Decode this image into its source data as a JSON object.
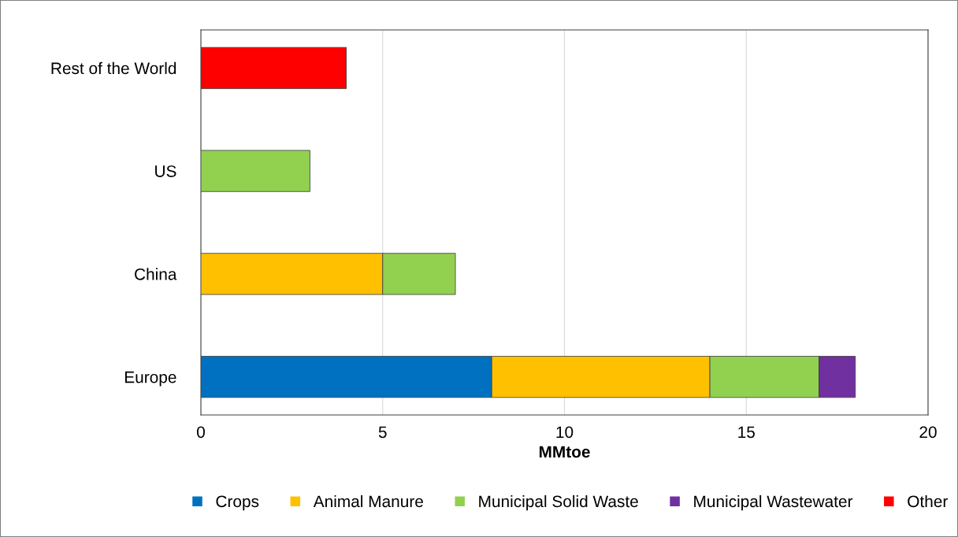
{
  "chart_data": {
    "type": "bar",
    "orientation": "horizontal",
    "stacked": true,
    "xlabel": "MMtoe",
    "categories": [
      "Rest of the World",
      "US",
      "China",
      "Europe"
    ],
    "series": [
      {
        "name": "Crops",
        "color": "#0070c0",
        "values": [
          null,
          null,
          null,
          8
        ]
      },
      {
        "name": "Animal Manure",
        "color": "#ffc000",
        "values": [
          null,
          null,
          5,
          6
        ]
      },
      {
        "name": "Municipal Solid Waste",
        "color": "#92d050",
        "values": [
          null,
          3,
          2,
          3
        ]
      },
      {
        "name": "Municipal Wastewater",
        "color": "#7030a0",
        "values": [
          null,
          null,
          null,
          1
        ]
      },
      {
        "name": "Other",
        "color": "#ff0000",
        "values": [
          4,
          null,
          null,
          null
        ]
      }
    ],
    "xlim": [
      0,
      20
    ],
    "xticks": [
      0,
      5,
      10,
      15,
      20
    ],
    "grid": "x",
    "legend": "bottom"
  }
}
